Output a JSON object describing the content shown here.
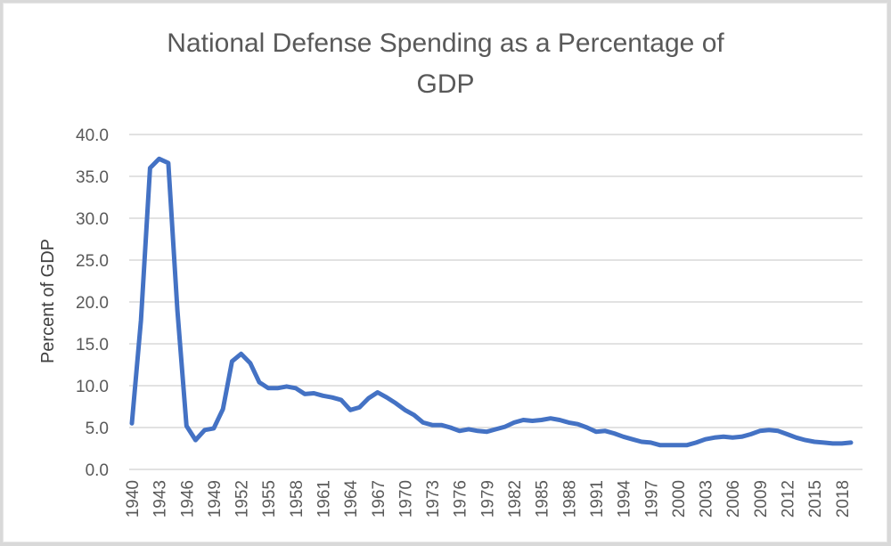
{
  "chart_data": {
    "type": "line",
    "title_lines": [
      "National Defense Spending as a Percentage of",
      "GDP"
    ],
    "title": "National Defense Spending as a Percentage of GDP",
    "xlabel": "",
    "ylabel": "Percent of GDP",
    "ylim": [
      0,
      40
    ],
    "yticks": [
      "0.0",
      "5.0",
      "10.0",
      "15.0",
      "20.0",
      "25.0",
      "30.0",
      "35.0",
      "40.0"
    ],
    "ytick_values": [
      0,
      5,
      10,
      15,
      20,
      25,
      30,
      35,
      40
    ],
    "xtick_labels": [
      "1940",
      "1943",
      "1946",
      "1949",
      "1952",
      "1955",
      "1958",
      "1961",
      "1964",
      "1967",
      "1970",
      "1973",
      "1976",
      "1979",
      "1982",
      "1985",
      "1988",
      "1991",
      "1994",
      "1997",
      "2000",
      "2003",
      "2006",
      "2009",
      "2012",
      "2015",
      "2018"
    ],
    "grid": true,
    "legend": "none",
    "series": [
      {
        "name": "Percent of GDP",
        "color": "#4472c4",
        "x": [
          1940,
          1941,
          1942,
          1943,
          1944,
          1945,
          1946,
          1947,
          1948,
          1949,
          1950,
          1951,
          1952,
          1953,
          1954,
          1955,
          1956,
          1957,
          1958,
          1959,
          1960,
          1961,
          1962,
          1963,
          1964,
          1965,
          1966,
          1967,
          1968,
          1969,
          1970,
          1971,
          1972,
          1973,
          1974,
          1975,
          1976,
          1977,
          1978,
          1979,
          1980,
          1981,
          1982,
          1983,
          1984,
          1985,
          1986,
          1987,
          1988,
          1989,
          1990,
          1991,
          1992,
          1993,
          1994,
          1995,
          1996,
          1997,
          1998,
          1999,
          2000,
          2001,
          2002,
          2003,
          2004,
          2005,
          2006,
          2007,
          2008,
          2009,
          2010,
          2011,
          2012,
          2013,
          2014,
          2015,
          2016,
          2017,
          2018,
          2019
        ],
        "values": [
          5.5,
          17.8,
          36.0,
          37.1,
          36.6,
          19.0,
          5.2,
          3.5,
          4.7,
          4.9,
          7.2,
          12.9,
          13.8,
          12.7,
          10.4,
          9.7,
          9.7,
          9.9,
          9.7,
          9.0,
          9.1,
          8.8,
          8.6,
          8.3,
          7.1,
          7.4,
          8.5,
          9.2,
          8.6,
          7.9,
          7.1,
          6.5,
          5.6,
          5.3,
          5.3,
          5.0,
          4.6,
          4.8,
          4.6,
          4.5,
          4.8,
          5.1,
          5.6,
          5.9,
          5.8,
          5.9,
          6.1,
          5.9,
          5.6,
          5.4,
          5.0,
          4.5,
          4.6,
          4.3,
          3.9,
          3.6,
          3.3,
          3.2,
          2.9,
          2.9,
          2.9,
          2.9,
          3.2,
          3.6,
          3.8,
          3.9,
          3.8,
          3.9,
          4.2,
          4.6,
          4.7,
          4.6,
          4.2,
          3.8,
          3.5,
          3.3,
          3.2,
          3.1,
          3.1,
          3.2
        ]
      }
    ]
  }
}
